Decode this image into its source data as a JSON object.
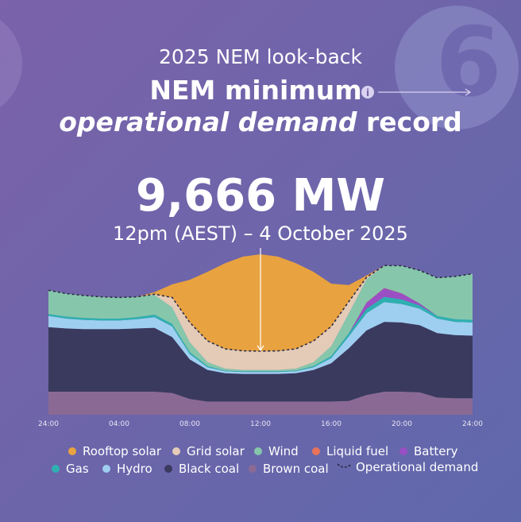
{
  "header": {
    "kicker": "2025 NEM look-back",
    "title_line1": "NEM minimum",
    "title_line2_italic": "operational demand",
    "title_line2_rest": "record",
    "badge": "6"
  },
  "headline": {
    "value": "9,666 MW",
    "when": "12pm (AEST) – 4 October 2025"
  },
  "chart_data": {
    "type": "stacked-area",
    "categories": [
      "24:00",
      null,
      null,
      null,
      "04:00",
      null,
      null,
      null,
      "08:00",
      null,
      null,
      null,
      "12:00",
      null,
      null,
      null,
      "16:00",
      null,
      null,
      null,
      "20:00",
      null,
      null,
      null,
      "24:00"
    ],
    "series": [
      {
        "name": "Rooftop solar",
        "color": "#e8a23f",
        "values": [
          0,
          0,
          0,
          0,
          0,
          0,
          300,
          2000,
          6500,
          10500,
          13000,
          14300,
          14700,
          14300,
          13000,
          10500,
          6500,
          2500,
          300,
          0,
          0,
          0,
          0,
          0,
          0
        ]
      },
      {
        "name": "Grid solar",
        "color": "#e4cbb8",
        "values": [
          0,
          0,
          0,
          0,
          0,
          0,
          100,
          1500,
          3000,
          3200,
          3000,
          2900,
          2866,
          2900,
          3000,
          3200,
          3000,
          1800,
          300,
          0,
          0,
          0,
          0,
          0,
          0
        ]
      },
      {
        "name": "Wind",
        "color": "#86c7ab",
        "values": [
          3600,
          3500,
          3400,
          3300,
          3200,
          3100,
          3000,
          2500,
          1500,
          600,
          300,
          200,
          200,
          200,
          300,
          600,
          1500,
          3000,
          3500,
          3400,
          4200,
          5000,
          5800,
          6500,
          7000
        ]
      },
      {
        "name": "Liquid fuel",
        "color": "#e8735a",
        "values": [
          0,
          0,
          0,
          0,
          0,
          0,
          0,
          0,
          0,
          0,
          0,
          0,
          0,
          0,
          0,
          0,
          0,
          0,
          50,
          50,
          30,
          0,
          0,
          0,
          0
        ]
      },
      {
        "name": "Battery",
        "color": "#9b4fc4",
        "values": [
          0,
          0,
          0,
          0,
          0,
          0,
          0,
          0,
          0,
          0,
          0,
          0,
          0,
          0,
          0,
          0,
          0,
          0,
          900,
          1300,
          900,
          300,
          0,
          0,
          0
        ]
      },
      {
        "name": "Gas",
        "color": "#2fb0b0",
        "values": [
          300,
          300,
          300,
          300,
          300,
          300,
          400,
          400,
          300,
          200,
          100,
          100,
          100,
          100,
          100,
          200,
          300,
          500,
          700,
          800,
          700,
          500,
          400,
          400,
          400
        ]
      },
      {
        "name": "Hydro",
        "color": "#9fcff0",
        "values": [
          1700,
          1500,
          1400,
          1300,
          1300,
          1400,
          1600,
          1600,
          800,
          400,
          300,
          300,
          300,
          300,
          300,
          400,
          800,
          1800,
          2600,
          3000,
          2800,
          2500,
          2200,
          2000,
          2000
        ]
      },
      {
        "name": "Black coal",
        "color": "#3a3a5e",
        "values": [
          9800,
          9600,
          9500,
          9500,
          9500,
          9600,
          9700,
          8500,
          6000,
          4800,
          4300,
          4200,
          4200,
          4200,
          4300,
          4800,
          5800,
          8000,
          9800,
          10600,
          10500,
          10200,
          9800,
          9600,
          9500
        ]
      },
      {
        "name": "Brown coal",
        "color": "#8a6a94",
        "values": [
          3500,
          3500,
          3500,
          3500,
          3500,
          3500,
          3500,
          3300,
          2400,
          2000,
          2000,
          2000,
          2000,
          2000,
          2000,
          2000,
          2000,
          2100,
          3000,
          3500,
          3500,
          3400,
          2600,
          2500,
          2500
        ]
      },
      {
        "name": "Operational demand",
        "color": "#2c2c44",
        "dashed": true,
        "values": [
          18900,
          18400,
          18100,
          17900,
          17800,
          17900,
          18300,
          17800,
          14000,
          11200,
          10000,
          9700,
          9666,
          9700,
          10000,
          11200,
          13400,
          17200,
          20850,
          22650,
          22630,
          21900,
          20800,
          21000,
          21400
        ]
      }
    ]
  }
}
